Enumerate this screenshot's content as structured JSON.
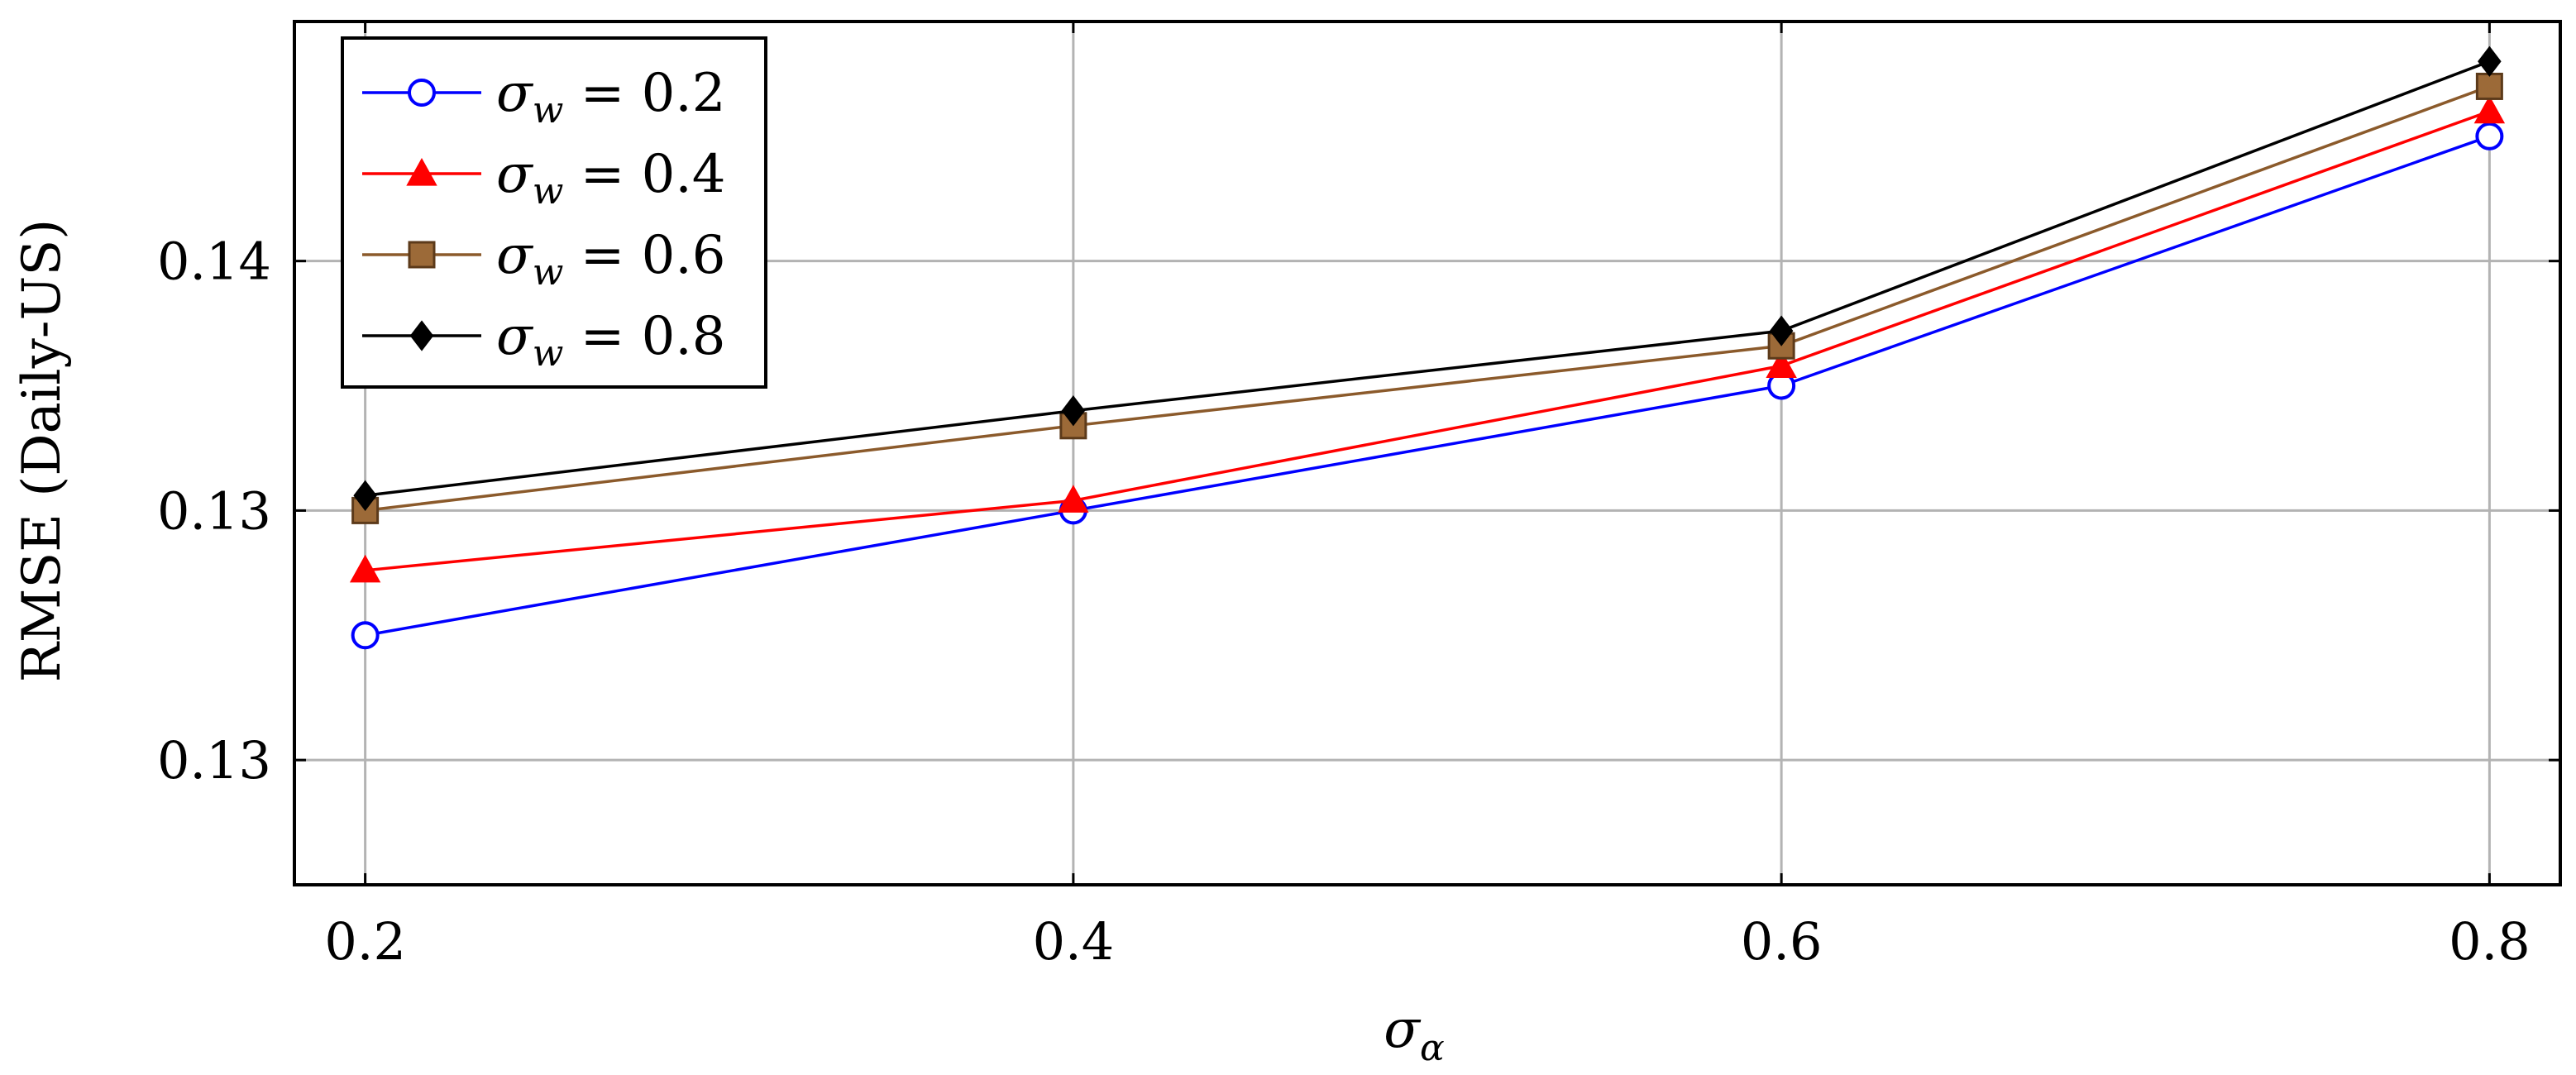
{
  "chart_data": {
    "type": "line",
    "title": "",
    "xlabel": "σ",
    "xlabel_sub": "α",
    "ylabel": "RMSE (Daily-US)",
    "x": [
      0.2,
      0.4,
      0.6,
      0.8
    ],
    "xticks": [
      "0.2",
      "0.4",
      "0.6",
      "0.8"
    ],
    "xlim": [
      0.18,
      0.82
    ],
    "yticks": [
      0.125,
      0.13,
      0.135
    ],
    "ytick_labels": [
      "0.13",
      "0.13",
      "0.14"
    ],
    "ylim": [
      0.1225,
      0.1398
    ],
    "grid": true,
    "legend_position": "top-left",
    "series": [
      {
        "name": "σ_w = 0.2",
        "legend_sym": "σ",
        "legend_sub": "w",
        "legend_value": "= 0.2",
        "color": "#0000ff",
        "marker": "circle-open",
        "values": [
          0.1275,
          0.13,
          0.1325,
          0.1375
        ]
      },
      {
        "name": "σ_w = 0.4",
        "legend_sym": "σ",
        "legend_sub": "w",
        "legend_value": "= 0.4",
        "color": "#ff0000",
        "marker": "triangle",
        "values": [
          0.1288,
          0.1302,
          0.1329,
          0.138
        ]
      },
      {
        "name": "σ_w = 0.6",
        "legend_sym": "σ",
        "legend_sub": "w",
        "legend_value": "= 0.6",
        "color": "#8b5a2b",
        "marker": "square",
        "values": [
          0.13,
          0.1317,
          0.1333,
          0.1385
        ]
      },
      {
        "name": "σ_w = 0.8",
        "legend_sym": "σ",
        "legend_sub": "w",
        "legend_value": "= 0.8",
        "color": "#000000",
        "marker": "diamond",
        "values": [
          0.1303,
          0.132,
          0.1336,
          0.139
        ]
      }
    ]
  }
}
